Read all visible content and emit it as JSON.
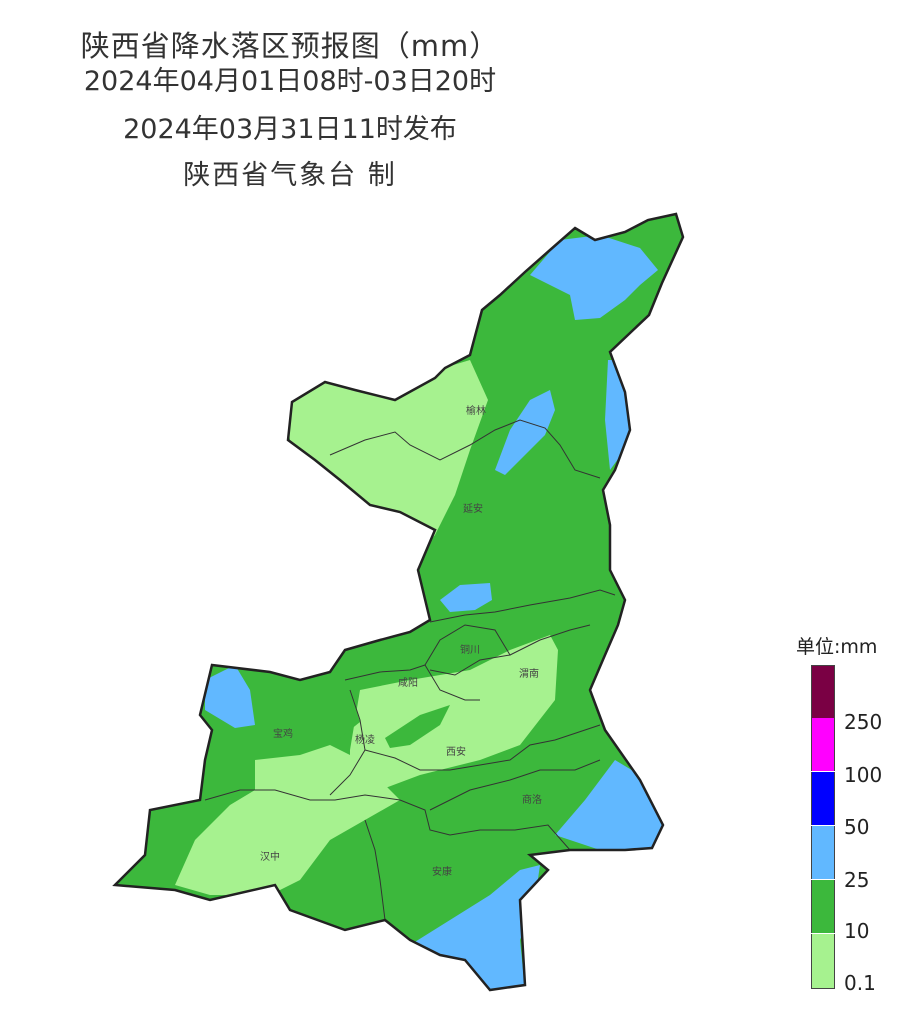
{
  "header": {
    "title": "陕西省降水落区预报图（mm）",
    "period": "2024年04月01日08时-03日20时",
    "issued": "2024年03月31日11时发布",
    "issuer": "陕西省气象台 制"
  },
  "cities": {
    "yulin": "榆林",
    "yanan": "延安",
    "tongchuan": "铜川",
    "weinan": "渭南",
    "xianyang": "咸阳",
    "baoji": "宝鸡",
    "yangling": "杨凌",
    "xian": "西安",
    "shangluo": "商洛",
    "hanzhong": "汉中",
    "ankang": "安康"
  },
  "legend": {
    "title": "单位:mm",
    "labels": [
      "250",
      "100",
      "50",
      "25",
      "10",
      "0.1"
    ],
    "colors": [
      "#7a0044",
      "#ff00ff",
      "#0000ff",
      "#61b8ff",
      "#3cb83c",
      "#a6f28f"
    ]
  }
}
